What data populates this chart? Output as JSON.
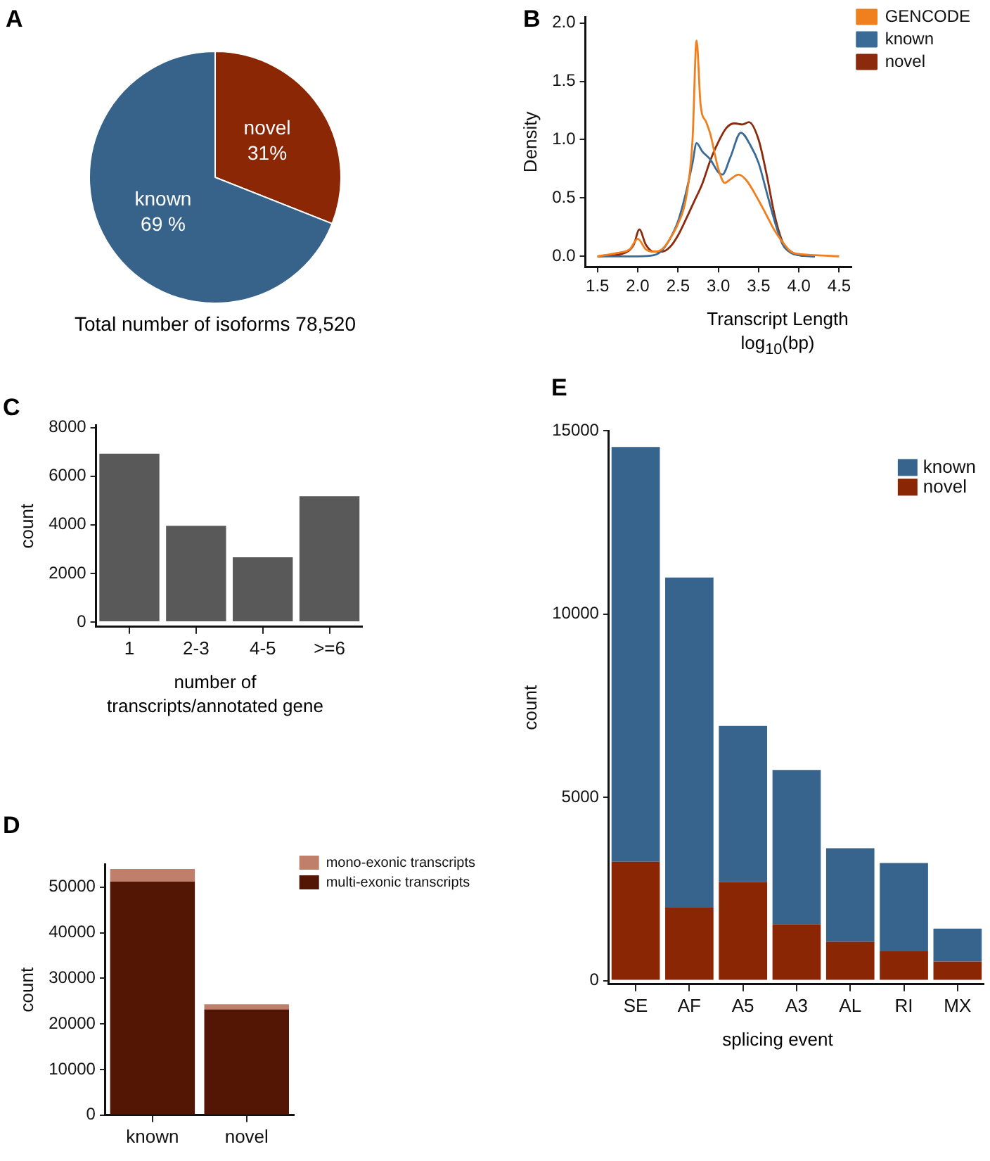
{
  "chart_data": [
    {
      "type": "pie",
      "title": "A",
      "categories": [
        "novel",
        "known"
      ],
      "values": [
        31,
        69
      ],
      "colors": [
        "#8b2704",
        "#37638b"
      ],
      "value_labels": [
        "31%",
        "69 %"
      ],
      "annotations": [
        "Total number of isoforms 78,520"
      ]
    },
    {
      "type": "line",
      "title": "B",
      "xlabel": "Transcript Length log$_{10}$(bp)",
      "ylabel": "Density",
      "legend": "right",
      "marker": "none",
      "line_style": "solid",
      "xlim": [
        1.35,
        4.65
      ],
      "ylim": [
        -0.09,
        2.05
      ],
      "xticks": [
        1.5,
        {
          "value": 2,
          "label": "2.0"
        },
        2.5,
        {
          "value": 3,
          "label": "3.0"
        },
        3.5,
        {
          "value": 4,
          "label": "4.0"
        },
        4.5
      ],
      "yticks": [
        {
          "value": 0,
          "label": "0.0"
        },
        0.5,
        {
          "value": 1,
          "label": "1.0"
        },
        1.5,
        {
          "value": 2,
          "label": "2.0"
        }
      ],
      "series": [
        {
          "name": "GENCODE",
          "color": "#f07f1d",
          "x": [
            1.5,
            1.75,
            1.9,
            2.0,
            2.1,
            2.2,
            2.3,
            2.4,
            2.5,
            2.6,
            2.68,
            2.73,
            2.78,
            2.85,
            2.9,
            3.0,
            3.08,
            3.15,
            3.25,
            3.35,
            3.5,
            3.6,
            3.7,
            3.8,
            3.9,
            4.0,
            4.2,
            4.5
          ],
          "values": [
            0,
            0.03,
            0.06,
            0.15,
            0.06,
            0.04,
            0.06,
            0.15,
            0.28,
            0.5,
            1.0,
            1.85,
            1.3,
            1.15,
            1.05,
            0.75,
            0.63,
            0.66,
            0.7,
            0.65,
            0.48,
            0.35,
            0.22,
            0.12,
            0.04,
            0.02,
            0.01,
            0
          ]
        },
        {
          "name": "known",
          "color": "#3a6b96",
          "x": [
            1.5,
            2.0,
            2.2,
            2.3,
            2.4,
            2.5,
            2.6,
            2.68,
            2.73,
            2.8,
            2.9,
            3.0,
            3.05,
            3.15,
            3.28,
            3.4,
            3.5,
            3.6,
            3.7,
            3.8,
            3.9,
            4.0,
            4.2
          ],
          "values": [
            0,
            0,
            0.01,
            0.05,
            0.15,
            0.3,
            0.55,
            0.8,
            0.97,
            0.9,
            0.83,
            0.72,
            0.7,
            0.85,
            1.06,
            0.95,
            0.8,
            0.55,
            0.3,
            0.1,
            0.03,
            0.01,
            0
          ]
        },
        {
          "name": "novel",
          "color": "#8b2a0c",
          "x": [
            1.5,
            1.8,
            1.95,
            2.02,
            2.1,
            2.2,
            2.3,
            2.4,
            2.5,
            2.6,
            2.7,
            2.8,
            2.9,
            3.0,
            3.1,
            3.2,
            3.3,
            3.38,
            3.5,
            3.6,
            3.7,
            3.8,
            3.9,
            4.0,
            4.2
          ],
          "values": [
            0,
            0.02,
            0.1,
            0.23,
            0.1,
            0.04,
            0.04,
            0.08,
            0.18,
            0.32,
            0.47,
            0.62,
            0.82,
            0.98,
            1.1,
            1.14,
            1.13,
            1.15,
            1.0,
            0.7,
            0.35,
            0.12,
            0.04,
            0.01,
            0
          ]
        }
      ]
    },
    {
      "type": "bar",
      "title": "C",
      "xlabel": "number of transcripts/annotated gene",
      "ylabel": "count",
      "categories": [
        "1",
        "2-3",
        "4-5",
        ">=6"
      ],
      "values": [
        6930,
        3960,
        2660,
        5180
      ],
      "color": "#595959",
      "ylim": [
        -200,
        8100
      ],
      "yticks": [
        0,
        2000,
        4000,
        6000,
        8000
      ]
    },
    {
      "type": "bar",
      "title": "D",
      "ylabel": "count",
      "categories": [
        "known",
        "novel"
      ],
      "stacked": true,
      "legend": "right",
      "ylim": [
        0,
        55000
      ],
      "yticks": [
        0,
        10000,
        20000,
        30000,
        40000,
        50000
      ],
      "series": [
        {
          "name": "multi-exonic transcripts",
          "color": "#541604",
          "values": [
            51200,
            23200
          ]
        },
        {
          "name": "mono-exonic transcripts",
          "color": "#bf7f6a",
          "values": [
            2800,
            1100
          ]
        }
      ]
    },
    {
      "type": "bar",
      "title": "E",
      "xlabel": "splicing event",
      "ylabel": "count",
      "categories": [
        "SE",
        "AF",
        "A5",
        "A3",
        "AL",
        "RI",
        "MX"
      ],
      "stacked": true,
      "legend": "top right",
      "ylim": [
        -100,
        15000
      ],
      "yticks": [
        0,
        5000,
        10000,
        15000
      ],
      "series": [
        {
          "name": "novel",
          "color": "#8b2605",
          "values": [
            3240,
            1990,
            2690,
            1540,
            1060,
            800,
            520
          ]
        },
        {
          "name": "known",
          "color": "#37648c",
          "values": [
            11320,
            9010,
            4260,
            4210,
            2550,
            2410,
            900
          ]
        }
      ]
    }
  ]
}
